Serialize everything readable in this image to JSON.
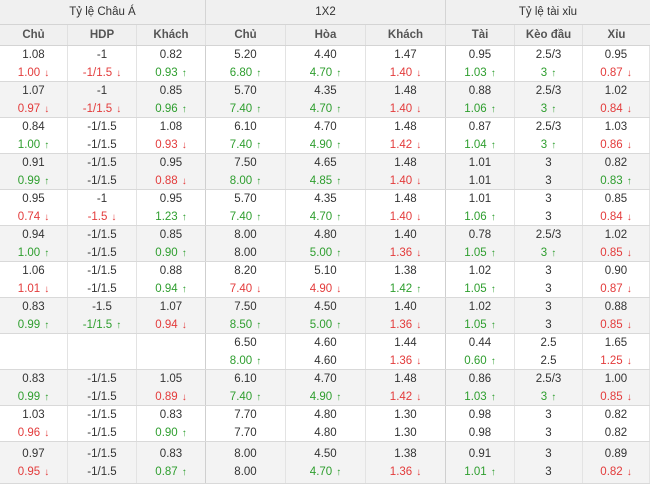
{
  "header": {
    "groups": [
      "Tỷ lệ Châu Á",
      "1X2",
      "Tỷ lệ tài xỉu"
    ],
    "columns": [
      "Chủ",
      "HDP",
      "Khách",
      "Chủ",
      "Hòa",
      "Khách",
      "Tài",
      "Kèo đầu",
      "Xỉu"
    ]
  },
  "rows": [
    [
      [
        "1.08",
        "1.00",
        "d"
      ],
      [
        "-1",
        "-1/1.5",
        "d"
      ],
      [
        "0.82",
        "0.93",
        "u"
      ],
      [
        "5.20",
        "6.80",
        "u"
      ],
      [
        "4.40",
        "4.70",
        "u"
      ],
      [
        "1.47",
        "1.40",
        "d"
      ],
      [
        "0.95",
        "1.03",
        "u"
      ],
      [
        "2.5/3",
        "3",
        "u"
      ],
      [
        "0.95",
        "0.87",
        "d"
      ]
    ],
    [
      [
        "1.07",
        "0.97",
        "d"
      ],
      [
        "-1",
        "-1/1.5",
        "d"
      ],
      [
        "0.85",
        "0.96",
        "u"
      ],
      [
        "5.70",
        "7.40",
        "u"
      ],
      [
        "4.35",
        "4.70",
        "u"
      ],
      [
        "1.48",
        "1.40",
        "d"
      ],
      [
        "0.88",
        "1.06",
        "u"
      ],
      [
        "2.5/3",
        "3",
        "u"
      ],
      [
        "1.02",
        "0.84",
        "d"
      ]
    ],
    [
      [
        "0.84",
        "1.00",
        "u"
      ],
      [
        "-1/1.5",
        "-1/1.5",
        ""
      ],
      [
        "1.08",
        "0.93",
        "d"
      ],
      [
        "6.10",
        "7.40",
        "u"
      ],
      [
        "4.70",
        "4.90",
        "u"
      ],
      [
        "1.48",
        "1.42",
        "d"
      ],
      [
        "0.87",
        "1.04",
        "u"
      ],
      [
        "2.5/3",
        "3",
        "u"
      ],
      [
        "1.03",
        "0.86",
        "d"
      ]
    ],
    [
      [
        "0.91",
        "0.99",
        "u"
      ],
      [
        "-1/1.5",
        "-1/1.5",
        ""
      ],
      [
        "0.95",
        "0.88",
        "d"
      ],
      [
        "7.50",
        "8.00",
        "u"
      ],
      [
        "4.65",
        "4.85",
        "u"
      ],
      [
        "1.48",
        "1.40",
        "d"
      ],
      [
        "1.01",
        "1.01",
        ""
      ],
      [
        "3",
        "3",
        ""
      ],
      [
        "0.82",
        "0.83",
        "u"
      ]
    ],
    [
      [
        "0.95",
        "0.74",
        "d"
      ],
      [
        "-1",
        "-1.5",
        "d"
      ],
      [
        "0.95",
        "1.23",
        "u"
      ],
      [
        "5.70",
        "7.40",
        "u"
      ],
      [
        "4.35",
        "4.70",
        "u"
      ],
      [
        "1.48",
        "1.40",
        "d"
      ],
      [
        "1.01",
        "1.06",
        "u"
      ],
      [
        "3",
        "3",
        ""
      ],
      [
        "0.85",
        "0.84",
        "d"
      ]
    ],
    [
      [
        "0.94",
        "1.00",
        "u"
      ],
      [
        "-1/1.5",
        "-1/1.5",
        ""
      ],
      [
        "0.85",
        "0.90",
        "u"
      ],
      [
        "8.00",
        "8.00",
        ""
      ],
      [
        "4.80",
        "5.00",
        "u"
      ],
      [
        "1.40",
        "1.36",
        "d"
      ],
      [
        "0.78",
        "1.05",
        "u"
      ],
      [
        "2.5/3",
        "3",
        "u"
      ],
      [
        "1.02",
        "0.85",
        "d"
      ]
    ],
    [
      [
        "1.06",
        "1.01",
        "d"
      ],
      [
        "-1/1.5",
        "-1/1.5",
        ""
      ],
      [
        "0.88",
        "0.94",
        "u"
      ],
      [
        "8.20",
        "7.40",
        "d"
      ],
      [
        "5.10",
        "4.90",
        "d"
      ],
      [
        "1.38",
        "1.42",
        "u"
      ],
      [
        "1.02",
        "1.05",
        "u"
      ],
      [
        "3",
        "3",
        ""
      ],
      [
        "0.90",
        "0.87",
        "d"
      ]
    ],
    [
      [
        "0.83",
        "0.99",
        "u"
      ],
      [
        "-1.5",
        "-1/1.5",
        "u"
      ],
      [
        "1.07",
        "0.94",
        "d"
      ],
      [
        "7.50",
        "8.50",
        "u"
      ],
      [
        "4.50",
        "5.00",
        "u"
      ],
      [
        "1.40",
        "1.36",
        "d"
      ],
      [
        "1.02",
        "1.05",
        "u"
      ],
      [
        "3",
        "3",
        ""
      ],
      [
        "0.88",
        "0.85",
        "d"
      ]
    ],
    [
      [
        "",
        "",
        ""
      ],
      [
        "",
        "",
        ""
      ],
      [
        "",
        "",
        ""
      ],
      [
        "6.50",
        "8.00",
        "u"
      ],
      [
        "4.60",
        "4.60",
        ""
      ],
      [
        "1.44",
        "1.36",
        "d"
      ],
      [
        "0.44",
        "0.60",
        "u"
      ],
      [
        "2.5",
        "2.5",
        ""
      ],
      [
        "1.65",
        "1.25",
        "d"
      ]
    ],
    [
      [
        "0.83",
        "0.99",
        "u"
      ],
      [
        "-1/1.5",
        "-1/1.5",
        ""
      ],
      [
        "1.05",
        "0.89",
        "d"
      ],
      [
        "6.10",
        "7.40",
        "u"
      ],
      [
        "4.70",
        "4.90",
        "u"
      ],
      [
        "1.48",
        "1.42",
        "d"
      ],
      [
        "0.86",
        "1.03",
        "u"
      ],
      [
        "2.5/3",
        "3",
        "u"
      ],
      [
        "1.00",
        "0.85",
        "d"
      ]
    ],
    [
      [
        "1.03",
        "0.96",
        "d"
      ],
      [
        "-1/1.5",
        "-1/1.5",
        ""
      ],
      [
        "0.83",
        "0.90",
        "u"
      ],
      [
        "7.70",
        "7.70",
        ""
      ],
      [
        "4.80",
        "4.80",
        ""
      ],
      [
        "1.30",
        "1.30",
        ""
      ],
      [
        "0.98",
        "0.98",
        ""
      ],
      [
        "3",
        "3",
        ""
      ],
      [
        "0.82",
        "0.82",
        ""
      ]
    ],
    [
      [
        "0.97",
        "0.95",
        "d"
      ],
      [
        "-1/1.5",
        "-1/1.5",
        ""
      ],
      [
        "0.83",
        "0.87",
        "u"
      ],
      [
        "8.00",
        "8.00",
        ""
      ],
      [
        "4.50",
        "4.70",
        "u"
      ],
      [
        "1.38",
        "1.36",
        "d"
      ],
      [
        "0.91",
        "1.01",
        "u"
      ],
      [
        "3",
        "3",
        ""
      ],
      [
        "0.89",
        "0.82",
        "d"
      ]
    ]
  ]
}
